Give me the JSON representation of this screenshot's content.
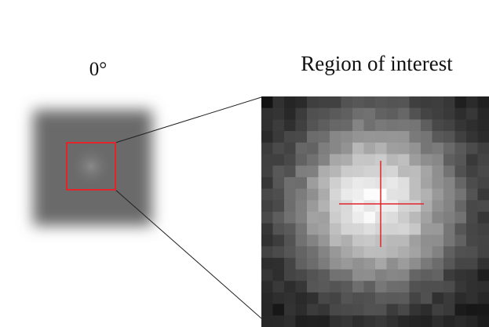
{
  "left_panel": {
    "label": "0°"
  },
  "right_panel": {
    "label": "Region of interest"
  }
}
